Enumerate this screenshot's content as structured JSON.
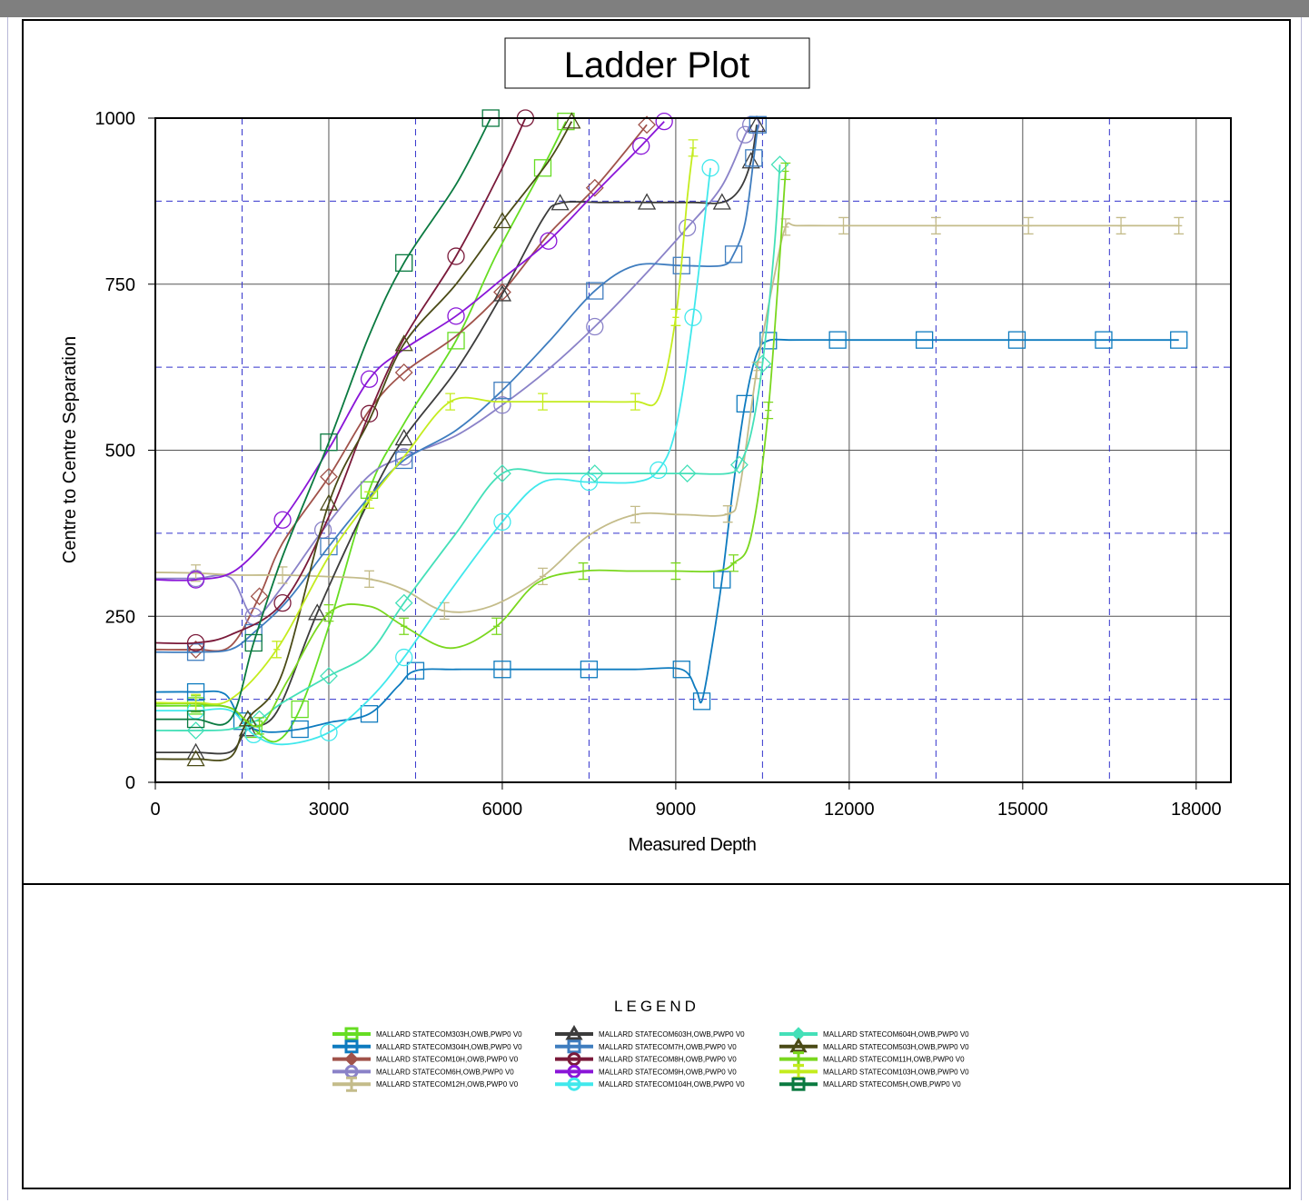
{
  "chart_data": {
    "type": "line",
    "title": "Ladder Plot",
    "xlabel": "Measured Depth",
    "ylabel": "Centre to Centre Separation",
    "xlim": [
      0,
      18600
    ],
    "ylim": [
      0,
      1000
    ],
    "x_ticks": [
      0,
      3000,
      6000,
      9000,
      12000,
      15000,
      18000
    ],
    "y_ticks": [
      0,
      250,
      500,
      750,
      1000
    ],
    "x_tick_labels": [
      "0",
      "3000",
      "6000",
      "9000",
      "12000",
      "15000",
      "18000"
    ],
    "y_tick_labels": [
      "0",
      "250",
      "500",
      "750",
      "1000"
    ],
    "grid": true,
    "dashed_grid_x": [
      1500,
      4500,
      7500,
      10500,
      13500,
      16500
    ],
    "dashed_grid_y": [
      125,
      375,
      625,
      875
    ],
    "legend_title": "LEGEND",
    "legend_placement": "bottom",
    "series": [
      {
        "name": "MALLARD STATECOM303H,OWB,PWP0 V0",
        "color": "#66dd22",
        "marker": "square",
        "points": [
          [
            0,
            115
          ],
          [
            700,
            115
          ],
          [
            1300,
            112
          ],
          [
            1700,
            80
          ],
          [
            2100,
            62
          ],
          [
            2500,
            110
          ],
          [
            3000,
            235
          ],
          [
            3700,
            440
          ],
          [
            4300,
            540
          ],
          [
            5200,
            665
          ],
          [
            5900,
            795
          ],
          [
            6700,
            925
          ],
          [
            7100,
            995
          ]
        ]
      },
      {
        "name": "MALLARD STATECOM304H,OWB,PWP0 V0",
        "color": "#0e7bbf",
        "marker": "square",
        "points": [
          [
            0,
            136
          ],
          [
            700,
            136
          ],
          [
            1200,
            133
          ],
          [
            1500,
            92
          ],
          [
            1900,
            76
          ],
          [
            2500,
            80
          ],
          [
            3000,
            90
          ],
          [
            3700,
            103
          ],
          [
            4200,
            145
          ],
          [
            4500,
            168
          ],
          [
            5200,
            170
          ],
          [
            6000,
            170
          ],
          [
            6800,
            170
          ],
          [
            7500,
            170
          ],
          [
            8300,
            170
          ],
          [
            9100,
            170
          ],
          [
            9350,
            140
          ],
          [
            9450,
            122
          ],
          [
            9600,
            190
          ],
          [
            9800,
            305
          ],
          [
            10000,
            450
          ],
          [
            10200,
            570
          ],
          [
            10400,
            645
          ],
          [
            10600,
            665
          ],
          [
            11000,
            666
          ],
          [
            11800,
            666
          ],
          [
            12500,
            666
          ],
          [
            13300,
            666
          ],
          [
            14100,
            666
          ],
          [
            14900,
            666
          ],
          [
            15600,
            666
          ],
          [
            16400,
            666
          ],
          [
            17200,
            666
          ],
          [
            17700,
            666
          ]
        ]
      },
      {
        "name": "MALLARD STATECOM10H,OWB,PWP0 V0",
        "color": "#a0524a",
        "marker": "diamond",
        "points": [
          [
            0,
            200
          ],
          [
            700,
            200
          ],
          [
            1300,
            205
          ],
          [
            1800,
            280
          ],
          [
            2200,
            360
          ],
          [
            3000,
            460
          ],
          [
            3700,
            560
          ],
          [
            4300,
            617
          ],
          [
            5200,
            672
          ],
          [
            6000,
            738
          ],
          [
            6800,
            825
          ],
          [
            7600,
            895
          ],
          [
            8500,
            990
          ]
        ]
      },
      {
        "name": "MALLARD STATECOM6H,OWB,PWP0 V0",
        "color": "#8a82c8",
        "marker": "circle",
        "points": [
          [
            0,
            307
          ],
          [
            700,
            307
          ],
          [
            1300,
            308
          ],
          [
            1700,
            250
          ],
          [
            2200,
            295
          ],
          [
            2900,
            380
          ],
          [
            3700,
            462
          ],
          [
            4300,
            490
          ],
          [
            5200,
            522
          ],
          [
            6000,
            568
          ],
          [
            6800,
            622
          ],
          [
            7600,
            686
          ],
          [
            8400,
            758
          ],
          [
            9200,
            835
          ],
          [
            9800,
            898
          ],
          [
            10200,
            975
          ],
          [
            10300,
            990
          ]
        ]
      },
      {
        "name": "MALLARD STATECOM12H,OWB,PWP0 V0",
        "color": "#c4bc8a",
        "marker": "tick",
        "points": [
          [
            0,
            316
          ],
          [
            700,
            315
          ],
          [
            1400,
            312
          ],
          [
            2200,
            312
          ],
          [
            2900,
            310
          ],
          [
            3700,
            306
          ],
          [
            4300,
            290
          ],
          [
            5000,
            258
          ],
          [
            5800,
            265
          ],
          [
            6700,
            310
          ],
          [
            7500,
            372
          ],
          [
            8300,
            403
          ],
          [
            9100,
            403
          ],
          [
            9900,
            404
          ],
          [
            10100,
            440
          ],
          [
            10400,
            620
          ],
          [
            10700,
            760
          ],
          [
            10900,
            836
          ],
          [
            11100,
            838
          ],
          [
            11900,
            838
          ],
          [
            12700,
            838
          ],
          [
            13500,
            838
          ],
          [
            14300,
            838
          ],
          [
            15100,
            838
          ],
          [
            15900,
            838
          ],
          [
            16700,
            838
          ],
          [
            17500,
            838
          ],
          [
            17700,
            838
          ]
        ]
      },
      {
        "name": "MALLARD STATECOM603H,OWB,PWP0 V0",
        "color": "#3c3c3c",
        "marker": "triangle",
        "points": [
          [
            0,
            45
          ],
          [
            700,
            45
          ],
          [
            1300,
            46
          ],
          [
            1600,
            80
          ],
          [
            2100,
            106
          ],
          [
            2800,
            255
          ],
          [
            3700,
            425
          ],
          [
            4300,
            518
          ],
          [
            5200,
            620
          ],
          [
            6000,
            735
          ],
          [
            6700,
            848
          ],
          [
            7000,
            872
          ],
          [
            7700,
            873
          ],
          [
            8500,
            873
          ],
          [
            9300,
            873
          ],
          [
            9800,
            873
          ],
          [
            10100,
            892
          ],
          [
            10300,
            935
          ],
          [
            10400,
            990
          ]
        ]
      },
      {
        "name": "MALLARD STATECOM7H,OWB,PWP0 V0",
        "color": "#3f7dbf",
        "marker": "square",
        "points": [
          [
            0,
            196
          ],
          [
            700,
            196
          ],
          [
            1300,
            200
          ],
          [
            1700,
            225
          ],
          [
            2300,
            275
          ],
          [
            3000,
            355
          ],
          [
            3700,
            430
          ],
          [
            4300,
            485
          ],
          [
            5200,
            530
          ],
          [
            6000,
            590
          ],
          [
            6800,
            663
          ],
          [
            7600,
            740
          ],
          [
            8300,
            778
          ],
          [
            9100,
            778
          ],
          [
            9800,
            778
          ],
          [
            10000,
            795
          ],
          [
            10200,
            843
          ],
          [
            10350,
            940
          ],
          [
            10420,
            990
          ]
        ]
      },
      {
        "name": "MALLARD STATECOM8H,OWB,PWP0 V0",
        "color": "#7a1a3a",
        "marker": "circle",
        "points": [
          [
            0,
            210
          ],
          [
            700,
            210
          ],
          [
            1300,
            222
          ],
          [
            2200,
            270
          ],
          [
            3000,
            400
          ],
          [
            3700,
            555
          ],
          [
            4300,
            668
          ],
          [
            5200,
            792
          ],
          [
            6000,
            925
          ],
          [
            6400,
            1000
          ]
        ]
      },
      {
        "name": "MALLARD STATECOM9H,OWB,PWP0 V0",
        "color": "#8a16d8",
        "marker": "circle",
        "points": [
          [
            0,
            305
          ],
          [
            700,
            305
          ],
          [
            1400,
            320
          ],
          [
            2200,
            395
          ],
          [
            3000,
            502
          ],
          [
            3700,
            607
          ],
          [
            4300,
            652
          ],
          [
            5200,
            702
          ],
          [
            6000,
            758
          ],
          [
            6800,
            815
          ],
          [
            7600,
            887
          ],
          [
            8400,
            958
          ],
          [
            8800,
            995
          ]
        ]
      },
      {
        "name": "MALLARD STATECOM104H,OWB,PWP0 V0",
        "color": "#40e8ec",
        "marker": "circle",
        "points": [
          [
            0,
            108
          ],
          [
            700,
            108
          ],
          [
            1300,
            108
          ],
          [
            1700,
            72
          ],
          [
            2200,
            57
          ],
          [
            3000,
            75
          ],
          [
            3700,
            125
          ],
          [
            4300,
            188
          ],
          [
            5100,
            288
          ],
          [
            6000,
            392
          ],
          [
            6700,
            452
          ],
          [
            7500,
            452
          ],
          [
            8300,
            452
          ],
          [
            8700,
            470
          ],
          [
            9000,
            532
          ],
          [
            9300,
            700
          ],
          [
            9600,
            925
          ]
        ]
      },
      {
        "name": "MALLARD STATECOM604H,OWB,PWP0 V0",
        "color": "#44e0b8",
        "marker": "diamond",
        "points": [
          [
            0,
            78
          ],
          [
            700,
            78
          ],
          [
            1300,
            80
          ],
          [
            1800,
            95
          ],
          [
            2200,
            120
          ],
          [
            3000,
            160
          ],
          [
            3700,
            195
          ],
          [
            4300,
            270
          ],
          [
            5200,
            375
          ],
          [
            6000,
            465
          ],
          [
            6800,
            465
          ],
          [
            7600,
            465
          ],
          [
            8400,
            465
          ],
          [
            9200,
            465
          ],
          [
            9900,
            465
          ],
          [
            10100,
            478
          ],
          [
            10300,
            525
          ],
          [
            10500,
            630
          ],
          [
            10700,
            800
          ],
          [
            10800,
            930
          ]
        ]
      },
      {
        "name": "MALLARD STATECOM503H,OWB,PWP0 V0",
        "color": "#4a4a16",
        "marker": "triangle",
        "points": [
          [
            0,
            35
          ],
          [
            700,
            35
          ],
          [
            1300,
            38
          ],
          [
            1600,
            95
          ],
          [
            2200,
            165
          ],
          [
            3000,
            420
          ],
          [
            3700,
            545
          ],
          [
            4300,
            660
          ],
          [
            5200,
            750
          ],
          [
            6000,
            845
          ],
          [
            6800,
            935
          ],
          [
            7200,
            995
          ]
        ]
      },
      {
        "name": "MALLARD STATECOM11H,OWB,PWP0 V0",
        "color": "#7ad71e",
        "marker": "tick",
        "points": [
          [
            0,
            118
          ],
          [
            700,
            118
          ],
          [
            1300,
            112
          ],
          [
            1800,
            85
          ],
          [
            2300,
            155
          ],
          [
            3000,
            255
          ],
          [
            3700,
            265
          ],
          [
            4300,
            235
          ],
          [
            5100,
            202
          ],
          [
            5900,
            235
          ],
          [
            6600,
            300
          ],
          [
            7400,
            318
          ],
          [
            8200,
            318
          ],
          [
            9000,
            318
          ],
          [
            9700,
            318
          ],
          [
            10000,
            330
          ],
          [
            10300,
            370
          ],
          [
            10600,
            560
          ],
          [
            10900,
            920
          ]
        ]
      },
      {
        "name": "MALLARD STATECOM103H,OWB,PWP0 V0",
        "color": "#c4ec1e",
        "marker": "tick",
        "points": [
          [
            0,
            120
          ],
          [
            700,
            120
          ],
          [
            1300,
            125
          ],
          [
            2100,
            200
          ],
          [
            3000,
            340
          ],
          [
            3700,
            425
          ],
          [
            4300,
            490
          ],
          [
            5100,
            573
          ],
          [
            5900,
            573
          ],
          [
            6700,
            573
          ],
          [
            7500,
            573
          ],
          [
            8300,
            573
          ],
          [
            8700,
            578
          ],
          [
            9000,
            700
          ],
          [
            9200,
            880
          ],
          [
            9300,
            955
          ]
        ]
      },
      {
        "name": "MALLARD STATECOM5H,OWB,PWP0 V0",
        "color": "#0a7a40",
        "marker": "square",
        "points": [
          [
            0,
            95
          ],
          [
            700,
            95
          ],
          [
            1300,
            95
          ],
          [
            1700,
            210
          ],
          [
            2200,
            340
          ],
          [
            3000,
            512
          ],
          [
            3700,
            673
          ],
          [
            4300,
            782
          ],
          [
            5200,
            900
          ],
          [
            5800,
            1000
          ]
        ]
      }
    ]
  }
}
